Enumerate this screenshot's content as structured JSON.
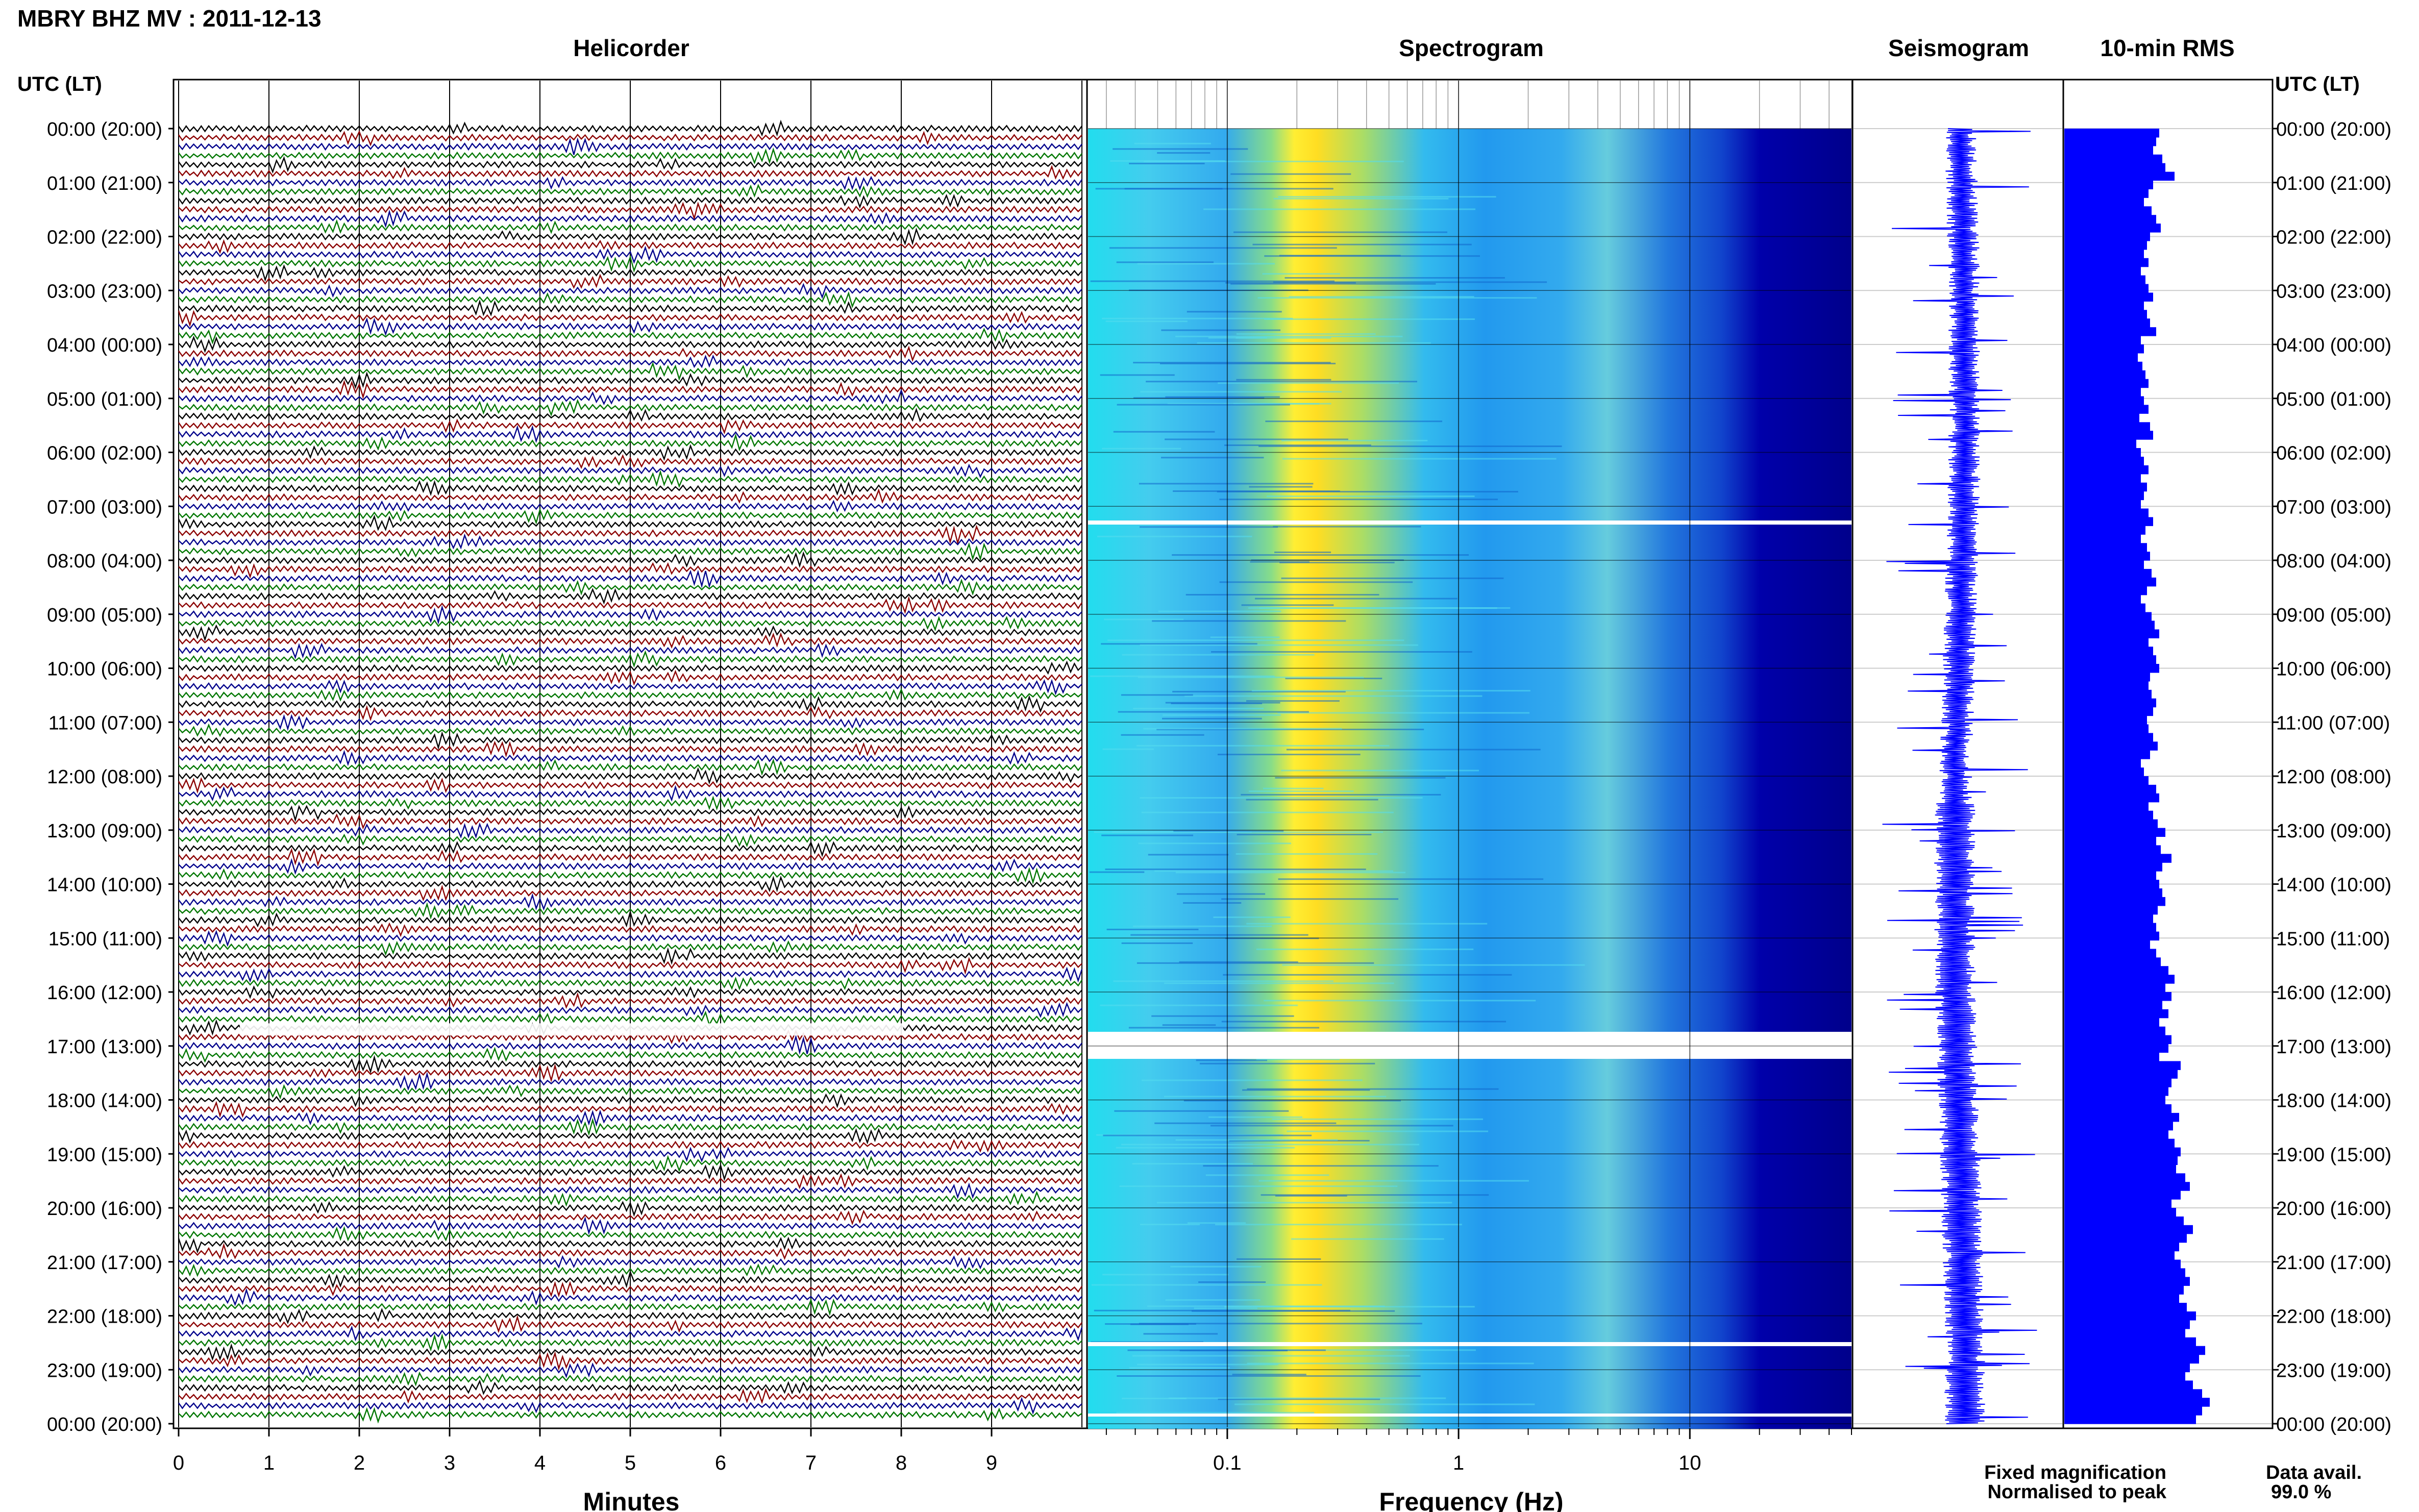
{
  "station_title": "MBRY BHZ MV : 2011-12-13",
  "panels": {
    "helicorder": "Helicorder",
    "spectrogram": "Spectrogram",
    "seismogram": "Seismogram",
    "rms": "10-min RMS"
  },
  "time_axis_label": "UTC (LT)",
  "hour_labels": [
    "00:00 (20:00)",
    "01:00 (21:00)",
    "02:00 (22:00)",
    "03:00 (23:00)",
    "04:00 (00:00)",
    "05:00 (01:00)",
    "06:00 (02:00)",
    "07:00 (03:00)",
    "08:00 (04:00)",
    "09:00 (05:00)",
    "10:00 (06:00)",
    "11:00 (07:00)",
    "12:00 (08:00)",
    "13:00 (09:00)",
    "14:00 (10:00)",
    "15:00 (11:00)",
    "16:00 (12:00)",
    "17:00 (13:00)",
    "18:00 (14:00)",
    "19:00 (15:00)",
    "20:00 (16:00)",
    "21:00 (17:00)",
    "22:00 (18:00)",
    "23:00 (19:00)",
    "00:00 (20:00)"
  ],
  "minutes_axis": {
    "label": "Minutes",
    "ticks": [
      "0",
      "1",
      "2",
      "3",
      "4",
      "5",
      "6",
      "7",
      "8",
      "9"
    ],
    "range": [
      0,
      10
    ]
  },
  "frequency_axis": {
    "label": "Frequency (Hz)",
    "ticks": [
      "0.1",
      "1",
      "10"
    ],
    "scale": "log",
    "range": [
      0.025,
      50
    ]
  },
  "legend": {
    "fixed": "Fixed magnification",
    "normalised": "Normalised to peak",
    "fixed_color": "#0000ff",
    "normalised_color": "#ff0000"
  },
  "data_avail": {
    "label": "Data avail.",
    "value": "99.0 %"
  },
  "colors": {
    "trace_cycle": [
      "#000000",
      "#8b0000",
      "#00008b",
      "#007700"
    ],
    "seismogram": "#0000ff",
    "rms_bar": "#0000ff",
    "spectrogram_low": "#00008b",
    "spectrogram_high": "#ffff00"
  },
  "chart_data": {
    "type": "bar",
    "title": "10-min RMS",
    "orientation": "horizontal",
    "y_axis": "UTC hour, 00:00 to 24:00",
    "bin_minutes": 10,
    "gaps_hours": [
      [
        7.2,
        7.3
      ],
      [
        16.6,
        17.1
      ],
      [
        22.4,
        22.5
      ]
    ],
    "rms_relative": [
      0.62,
      0.6,
      0.58,
      0.64,
      0.66,
      0.72,
      0.58,
      0.55,
      0.52,
      0.57,
      0.6,
      0.63,
      0.56,
      0.54,
      0.52,
      0.55,
      0.5,
      0.53,
      0.55,
      0.58,
      0.52,
      0.54,
      0.56,
      0.6,
      0.5,
      0.52,
      0.48,
      0.51,
      0.53,
      0.55,
      0.5,
      0.52,
      0.55,
      0.49,
      0.56,
      0.58,
      0.47,
      0.5,
      0.52,
      0.55,
      0.5,
      0.54,
      0.52,
      0.5,
      0.55,
      0.58,
      0.53,
      0.5,
      0.54,
      0.56,
      0.52,
      0.57,
      0.6,
      0.54,
      0.5,
      0.53,
      0.57,
      0.59,
      0.62,
      0.55,
      0.58,
      0.6,
      0.62,
      0.56,
      0.55,
      0.57,
      0.6,
      0.58,
      0.54,
      0.55,
      0.58,
      0.61,
      0.56,
      0.5,
      0.52,
      0.55,
      0.6,
      0.62,
      0.55,
      0.58,
      0.61,
      0.66,
      0.6,
      0.63,
      0.7,
      0.64,
      0.6,
      0.62,
      0.64,
      0.66,
      0.61,
      0.58,
      0.6,
      0.62,
      0.56,
      0.6,
      0.63,
      0.68,
      0.72,
      0.66,
      0.7,
      0.64,
      0.68,
      0.62,
      0.66,
      0.7,
      0.68,
      0.62,
      0.76,
      0.74,
      0.7,
      0.68,
      0.66,
      0.7,
      0.75,
      0.71,
      0.68,
      0.72,
      0.76,
      0.74,
      0.73,
      0.79,
      0.82,
      0.76,
      0.7,
      0.73,
      0.78,
      0.84,
      0.8,
      0.75,
      0.72,
      0.76,
      0.79,
      0.82,
      0.78,
      0.75,
      0.8,
      0.86,
      0.82,
      0.79,
      0.86,
      0.92,
      0.88,
      0.82,
      0.79,
      0.84,
      0.9,
      0.95,
      0.9,
      0.86
    ]
  }
}
